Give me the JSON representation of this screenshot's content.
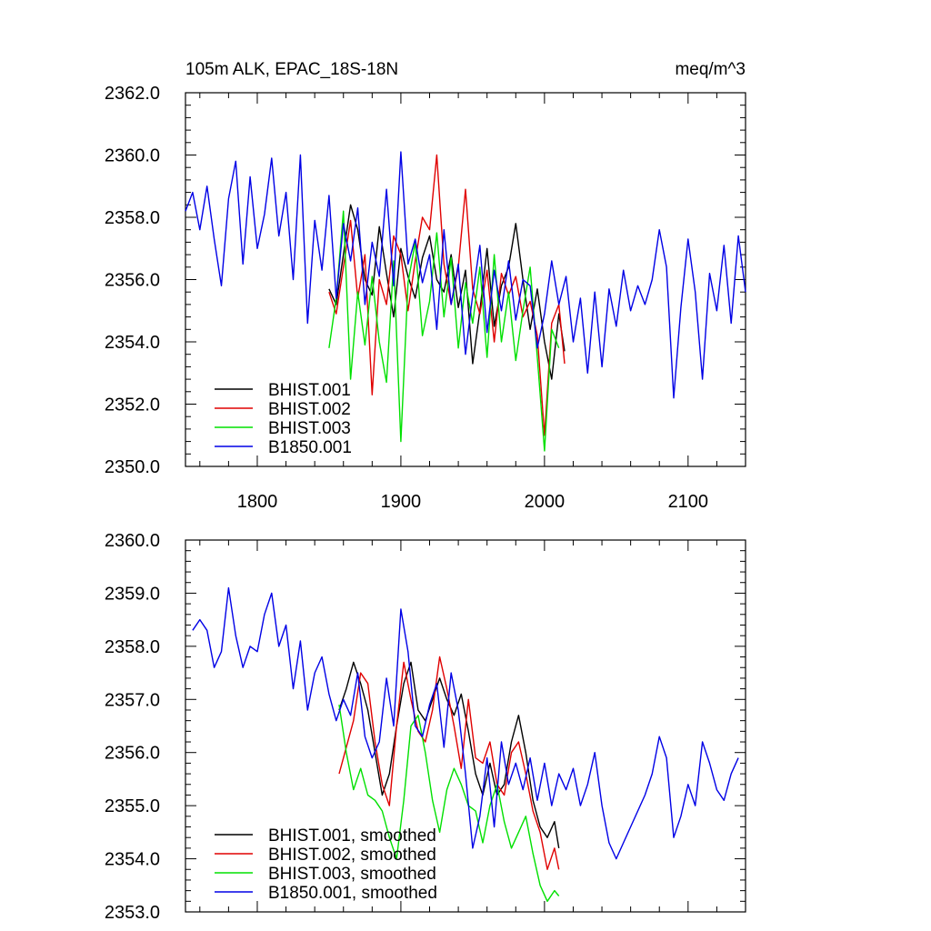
{
  "colors": {
    "black": "#000000",
    "red": "#e00000",
    "green": "#00e000",
    "blue": "#0000e6"
  },
  "chart_data": [
    {
      "type": "line",
      "title": "105m ALK, EPAC_18S-18N",
      "units": "meq/m^3",
      "xlim": [
        1750,
        2140
      ],
      "ylim": [
        2350,
        2362
      ],
      "xticks": [
        1800,
        1900,
        2000,
        2100
      ],
      "xticklabels": [
        "1800",
        "1900",
        "2000",
        "2100"
      ],
      "yticks": [
        2350,
        2352,
        2354,
        2356,
        2358,
        2360,
        2362
      ],
      "yticklabels": [
        "2350.0",
        "2352.0",
        "2354.0",
        "2356.0",
        "2358.0",
        "2360.0",
        "2362.0"
      ],
      "legend_position": "bottom-left",
      "series": [
        {
          "name": "BHIST.001",
          "color": "#000000",
          "x": [
            1850,
            1855,
            1860,
            1865,
            1870,
            1875,
            1880,
            1885,
            1890,
            1895,
            1900,
            1905,
            1910,
            1915,
            1920,
            1925,
            1930,
            1935,
            1940,
            1945,
            1950,
            1955,
            1960,
            1965,
            1970,
            1975,
            1980,
            1985,
            1990,
            1995,
            2000,
            2005,
            2010,
            2014
          ],
          "values": [
            2355.7,
            2355.2,
            2356.8,
            2358.4,
            2357.6,
            2356.0,
            2355.5,
            2357.7,
            2356.2,
            2354.8,
            2357.0,
            2356.1,
            2355.4,
            2356.7,
            2357.4,
            2356.0,
            2355.6,
            2356.8,
            2355.1,
            2356.3,
            2353.3,
            2355.0,
            2357.0,
            2354.5,
            2355.8,
            2356.4,
            2357.8,
            2356.0,
            2354.4,
            2355.7,
            2354.0,
            2352.8,
            2354.9,
            2353.7
          ]
        },
        {
          "name": "BHIST.002",
          "color": "#e00000",
          "x": [
            1850,
            1855,
            1860,
            1865,
            1870,
            1875,
            1880,
            1885,
            1890,
            1895,
            1900,
            1905,
            1910,
            1915,
            1920,
            1925,
            1930,
            1935,
            1940,
            1945,
            1950,
            1955,
            1960,
            1965,
            1970,
            1975,
            1980,
            1985,
            1990,
            1995,
            2000,
            2005,
            2010,
            2014
          ],
          "values": [
            2355.6,
            2354.9,
            2356.4,
            2357.9,
            2355.4,
            2356.8,
            2352.3,
            2356.0,
            2355.2,
            2357.4,
            2356.8,
            2355.0,
            2356.6,
            2358.0,
            2357.6,
            2360.0,
            2356.5,
            2355.2,
            2356.4,
            2358.9,
            2355.7,
            2354.9,
            2356.3,
            2354.0,
            2356.2,
            2355.5,
            2356.1,
            2354.8,
            2355.3,
            2354.2,
            2351.0,
            2354.6,
            2355.2,
            2353.3
          ]
        },
        {
          "name": "BHIST.003",
          "color": "#00e000",
          "x": [
            1850,
            1855,
            1860,
            1865,
            1870,
            1875,
            1880,
            1885,
            1890,
            1895,
            1900,
            1905,
            1910,
            1915,
            1920,
            1925,
            1930,
            1935,
            1940,
            1945,
            1950,
            1955,
            1960,
            1965,
            1970,
            1975,
            1980,
            1985,
            1990,
            1995,
            2000,
            2005,
            2010
          ],
          "values": [
            2353.8,
            2355.4,
            2358.2,
            2352.8,
            2355.6,
            2353.9,
            2356.1,
            2354.0,
            2352.7,
            2356.6,
            2350.8,
            2355.9,
            2357.2,
            2354.2,
            2355.3,
            2357.5,
            2354.8,
            2356.7,
            2353.8,
            2355.9,
            2354.6,
            2356.4,
            2353.5,
            2356.8,
            2354.0,
            2355.6,
            2353.4,
            2355.0,
            2356.4,
            2353.5,
            2350.5,
            2354.4,
            2353.8
          ]
        },
        {
          "name": "B1850.001",
          "color": "#0000e6",
          "x": [
            1750,
            1755,
            1760,
            1765,
            1770,
            1775,
            1780,
            1785,
            1790,
            1795,
            1800,
            1805,
            1810,
            1815,
            1820,
            1825,
            1830,
            1835,
            1840,
            1845,
            1850,
            1855,
            1860,
            1865,
            1870,
            1875,
            1880,
            1885,
            1890,
            1895,
            1900,
            1905,
            1910,
            1915,
            1920,
            1925,
            1930,
            1935,
            1940,
            1945,
            1950,
            1955,
            1960,
            1965,
            1970,
            1975,
            1980,
            1985,
            1990,
            1995,
            2000,
            2005,
            2010,
            2015,
            2020,
            2025,
            2030,
            2035,
            2040,
            2045,
            2050,
            2055,
            2060,
            2065,
            2070,
            2075,
            2080,
            2085,
            2090,
            2095,
            2100,
            2105,
            2110,
            2115,
            2120,
            2125,
            2130,
            2135,
            2140
          ],
          "values": [
            2358.2,
            2358.8,
            2357.6,
            2359.0,
            2357.3,
            2355.8,
            2358.6,
            2359.8,
            2356.5,
            2359.3,
            2357.0,
            2358.1,
            2359.9,
            2357.4,
            2358.8,
            2356.0,
            2360.0,
            2354.6,
            2357.9,
            2356.3,
            2358.7,
            2355.4,
            2357.8,
            2356.6,
            2358.3,
            2355.2,
            2357.2,
            2356.1,
            2358.9,
            2355.8,
            2360.1,
            2356.5,
            2357.3,
            2355.9,
            2356.8,
            2354.4,
            2357.6,
            2355.2,
            2356.5,
            2353.6,
            2355.5,
            2357.1,
            2354.3,
            2356.3,
            2355.0,
            2356.6,
            2354.7,
            2356.0,
            2355.8,
            2353.8,
            2354.9,
            2356.6,
            2355.2,
            2356.1,
            2354.0,
            2355.4,
            2353.0,
            2355.6,
            2353.2,
            2355.7,
            2354.5,
            2356.3,
            2355.0,
            2355.8,
            2355.2,
            2356.0,
            2357.6,
            2356.4,
            2352.2,
            2355.1,
            2357.3,
            2355.6,
            2352.8,
            2356.2,
            2355.0,
            2357.1,
            2354.6,
            2357.4,
            2355.6
          ]
        }
      ]
    },
    {
      "type": "line",
      "xlim": [
        1750,
        2140
      ],
      "ylim": [
        2353,
        2360
      ],
      "xticks": [
        1800,
        1900,
        2000,
        2100
      ],
      "yticks": [
        2353,
        2354,
        2355,
        2356,
        2357,
        2358,
        2359,
        2360
      ],
      "yticklabels": [
        "2353.0",
        "2354.0",
        "2355.0",
        "2356.0",
        "2357.0",
        "2358.0",
        "2359.0",
        "2360.0"
      ],
      "legend_position": "bottom-left",
      "series": [
        {
          "name": "BHIST.001, smoothed",
          "color": "#000000",
          "x": [
            1857,
            1862,
            1867,
            1872,
            1877,
            1882,
            1887,
            1892,
            1897,
            1902,
            1907,
            1912,
            1917,
            1922,
            1927,
            1932,
            1937,
            1942,
            1947,
            1952,
            1957,
            1962,
            1967,
            1972,
            1977,
            1982,
            1987,
            1992,
            1997,
            2002,
            2007,
            2010
          ],
          "values": [
            2356.8,
            2357.2,
            2357.7,
            2357.3,
            2356.8,
            2356.0,
            2355.2,
            2355.6,
            2356.5,
            2357.3,
            2357.7,
            2356.8,
            2356.6,
            2357.0,
            2357.4,
            2357.0,
            2356.7,
            2357.1,
            2356.4,
            2355.6,
            2355.2,
            2355.8,
            2355.2,
            2355.4,
            2356.2,
            2356.7,
            2356.0,
            2355.1,
            2354.6,
            2354.4,
            2354.7,
            2354.2
          ]
        },
        {
          "name": "BHIST.002, smoothed",
          "color": "#e00000",
          "x": [
            1857,
            1862,
            1867,
            1872,
            1877,
            1882,
            1887,
            1892,
            1897,
            1902,
            1907,
            1912,
            1917,
            1922,
            1927,
            1932,
            1937,
            1942,
            1947,
            1952,
            1957,
            1962,
            1967,
            1972,
            1977,
            1982,
            1987,
            1992,
            1997,
            2002,
            2007,
            2010
          ],
          "values": [
            2355.6,
            2356.1,
            2356.6,
            2357.5,
            2357.3,
            2356.2,
            2355.4,
            2355.0,
            2356.5,
            2357.7,
            2357.0,
            2356.4,
            2356.2,
            2356.8,
            2357.8,
            2357.2,
            2356.5,
            2355.7,
            2357.0,
            2355.9,
            2355.8,
            2356.2,
            2355.4,
            2355.2,
            2356.0,
            2356.2,
            2355.6,
            2354.9,
            2354.5,
            2353.8,
            2354.2,
            2353.8
          ]
        },
        {
          "name": "BHIST.003, smoothed",
          "color": "#00e000",
          "x": [
            1857,
            1862,
            1867,
            1872,
            1877,
            1882,
            1887,
            1892,
            1897,
            1902,
            1907,
            1912,
            1917,
            1922,
            1927,
            1932,
            1937,
            1942,
            1947,
            1952,
            1957,
            1962,
            1967,
            1972,
            1977,
            1982,
            1987,
            1992,
            1997,
            2002,
            2007,
            2010
          ],
          "values": [
            2356.9,
            2356.0,
            2355.3,
            2355.7,
            2355.2,
            2355.1,
            2354.9,
            2354.4,
            2354.0,
            2355.1,
            2356.5,
            2356.7,
            2356.0,
            2355.1,
            2354.5,
            2355.3,
            2355.7,
            2355.4,
            2355.0,
            2354.9,
            2354.3,
            2355.0,
            2355.4,
            2354.7,
            2354.2,
            2354.5,
            2354.8,
            2354.1,
            2353.5,
            2353.2,
            2353.4,
            2353.3
          ]
        },
        {
          "name": "B1850.001, smoothed",
          "color": "#0000e6",
          "x": [
            1755,
            1760,
            1765,
            1770,
            1775,
            1780,
            1785,
            1790,
            1795,
            1800,
            1805,
            1810,
            1815,
            1820,
            1825,
            1830,
            1835,
            1840,
            1845,
            1850,
            1855,
            1860,
            1865,
            1870,
            1875,
            1880,
            1885,
            1890,
            1895,
            1900,
            1905,
            1910,
            1915,
            1920,
            1925,
            1930,
            1935,
            1940,
            1945,
            1950,
            1955,
            1960,
            1965,
            1970,
            1975,
            1980,
            1985,
            1990,
            1995,
            2000,
            2005,
            2010,
            2015,
            2020,
            2025,
            2030,
            2035,
            2040,
            2045,
            2050,
            2055,
            2060,
            2065,
            2070,
            2075,
            2080,
            2085,
            2090,
            2095,
            2100,
            2105,
            2110,
            2115,
            2120,
            2125,
            2130,
            2135
          ],
          "values": [
            2358.3,
            2358.5,
            2358.3,
            2357.6,
            2357.9,
            2359.1,
            2358.2,
            2357.6,
            2358.0,
            2357.9,
            2358.6,
            2359.0,
            2358.0,
            2358.4,
            2357.2,
            2358.1,
            2356.8,
            2357.5,
            2357.8,
            2357.1,
            2356.6,
            2357.0,
            2356.7,
            2357.5,
            2356.3,
            2355.9,
            2356.2,
            2357.4,
            2356.5,
            2358.7,
            2357.9,
            2356.5,
            2356.3,
            2356.9,
            2357.3,
            2356.1,
            2357.5,
            2356.8,
            2355.6,
            2354.2,
            2354.8,
            2355.9,
            2354.6,
            2356.2,
            2355.4,
            2355.8,
            2355.3,
            2355.9,
            2355.1,
            2355.8,
            2355.0,
            2355.6,
            2355.3,
            2355.7,
            2355.0,
            2355.4,
            2356.0,
            2355.0,
            2354.3,
            2354.0,
            2354.3,
            2354.6,
            2354.9,
            2355.2,
            2355.6,
            2356.3,
            2355.9,
            2354.4,
            2354.8,
            2355.4,
            2355.0,
            2356.2,
            2355.8,
            2355.3,
            2355.1,
            2355.6,
            2355.9
          ]
        }
      ]
    }
  ]
}
